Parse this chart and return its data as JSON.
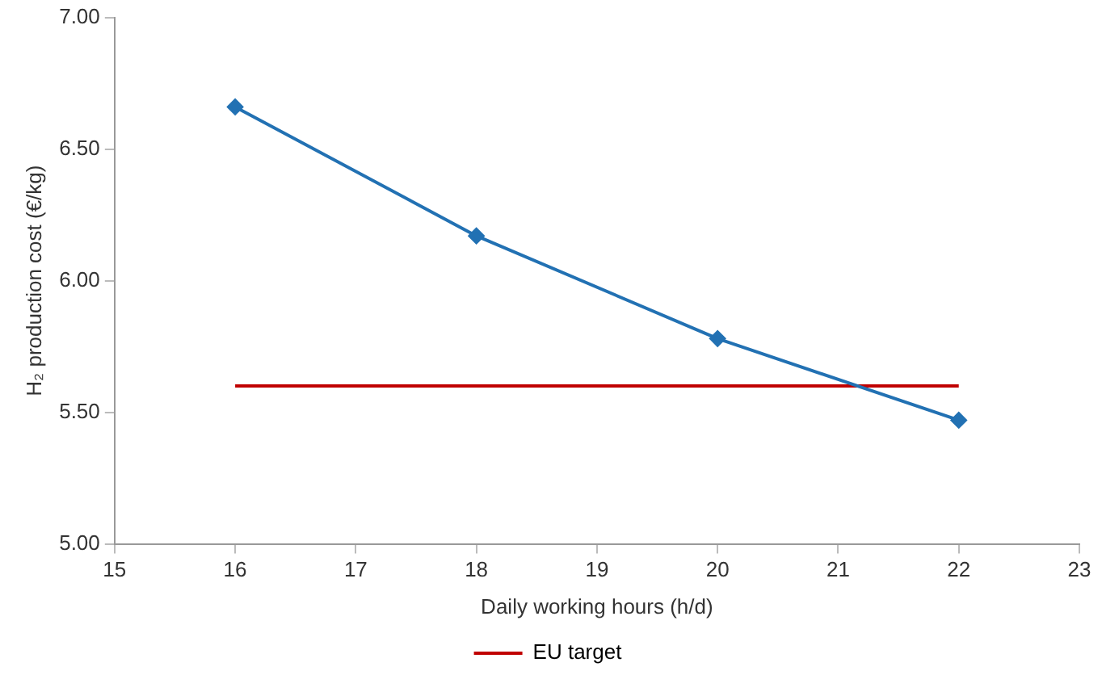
{
  "chart_data": {
    "type": "line",
    "xlabel": "Daily working hours (h/d)",
    "ylabel": "H₂ production cost (€/kg)",
    "xlim": [
      15,
      23
    ],
    "xticks": [
      15,
      16,
      17,
      18,
      19,
      20,
      21,
      22,
      23
    ],
    "ylim": [
      5,
      7
    ],
    "yticks": [
      {
        "value": 5,
        "label": "5.00"
      },
      {
        "value": 5.5,
        "label": "5.50"
      },
      {
        "value": 6,
        "label": "6.00"
      },
      {
        "value": 6.5,
        "label": "6.50"
      },
      {
        "value": 7,
        "label": "7.00"
      }
    ],
    "grid": false,
    "legend": "bottom",
    "series": [
      {
        "x": [
          16,
          18,
          20,
          22
        ],
        "values": [
          6.66,
          6.17,
          5.78,
          5.47
        ],
        "color": "#2271b3",
        "marker": "diamond"
      },
      {
        "name": "EU target",
        "x": [
          16,
          22
        ],
        "values": [
          5.6,
          5.6
        ],
        "color": "#c00000",
        "marker": "none"
      }
    ]
  }
}
